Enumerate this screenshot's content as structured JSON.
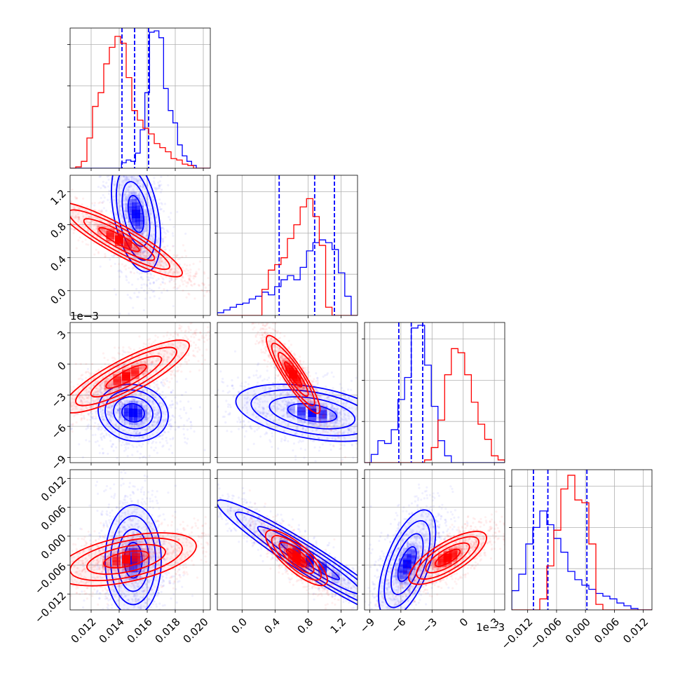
{
  "chart_data": {
    "type": "corner",
    "parameters": [
      {
        "ticks": [
          0.012,
          0.014,
          0.016,
          0.018,
          0.02
        ],
        "tick_labels": [
          "0.012",
          "0.014",
          "0.016",
          "0.018",
          "0.020"
        ],
        "range": [
          0.0105,
          0.0205
        ],
        "offset_text": ""
      },
      {
        "ticks": [
          0.0,
          0.4,
          0.8,
          1.2
        ],
        "tick_labels": [
          "0.0",
          "0.4",
          "0.8",
          "1.2"
        ],
        "range": [
          -0.3,
          1.4
        ],
        "offset_text": ""
      },
      {
        "ticks": [
          -9,
          -6,
          -3,
          0,
          3
        ],
        "tick_labels": [
          "−9",
          "−6",
          "−3",
          "0",
          "3"
        ],
        "range": [
          -9.5,
          4.0
        ],
        "offset_text": "1e−3"
      },
      {
        "ticks": [
          -0.012,
          -0.006,
          0.0,
          0.006,
          0.012
        ],
        "tick_labels": [
          "−0.012",
          "−0.006",
          "0.000",
          "0.006",
          "0.012"
        ],
        "range": [
          -0.0153,
          0.0138
        ],
        "offset_text": ""
      }
    ],
    "series": [
      {
        "color": "#0000ff",
        "quantiles": [
          [
            0.0142,
            0.0151,
            0.0161
          ],
          [
            0.45,
            0.88,
            1.12
          ],
          [
            -6.2,
            -5.0,
            -3.9
          ],
          [
            -0.0108,
            -0.0078,
            0.0003
          ]
        ],
        "hists": [
          [
            0,
            0,
            0,
            0,
            0,
            0,
            0,
            0,
            0,
            0,
            0,
            0.04,
            0.06,
            0.05,
            0.11,
            0.28,
            0.55,
            0.99,
            1.0,
            0.95,
            0.58,
            0.42,
            0.33,
            0.17,
            0.09,
            0.05,
            0.02,
            0,
            0,
            0
          ],
          [
            0.02,
            0.04,
            0.06,
            0.08,
            0.09,
            0.12,
            0.14,
            0.17,
            0.15,
            0.21,
            0.26,
            0.29,
            0.26,
            0.35,
            0.47,
            0.53,
            0.55,
            0.53,
            0.48,
            0.31,
            0.14,
            0.0
          ],
          [
            0.0,
            0.06,
            0.16,
            0.14,
            0.24,
            0.46,
            0.62,
            0.98,
            1.0,
            0.71,
            0.41,
            0.16,
            0.05,
            0.0,
            0.0,
            0.0,
            0.0,
            0.0,
            0.0,
            0.0,
            0.0
          ],
          [
            0.14,
            0.26,
            0.48,
            0.6,
            0.72,
            0.62,
            0.52,
            0.42,
            0.28,
            0.22,
            0.18,
            0.15,
            0.12,
            0.1,
            0.08,
            0.05,
            0.03,
            0.01,
            0.0,
            0.0
          ]
        ],
        "blobs": [
          {
            "i": 1,
            "j": 0,
            "c": [
              0.0152,
              0.93
            ],
            "s": [
              0.0007,
              0.28
            ],
            "r": -0.4
          },
          {
            "i": 2,
            "j": 0,
            "c": [
              0.015,
              -4.7
            ],
            "s": [
              0.001,
              1.1
            ],
            "r": -0.1
          },
          {
            "i": 2,
            "j": 1,
            "c": [
              0.85,
              -4.7
            ],
            "s": [
              0.37,
              1.1
            ],
            "r": -0.4
          },
          {
            "i": 3,
            "j": 0,
            "c": [
              0.015,
              -0.005
            ],
            "s": [
              0.0008,
              0.0046
            ],
            "r": 0.0
          },
          {
            "i": 3,
            "j": 1,
            "c": [
              0.82,
              -0.005
            ],
            "s": [
              0.45,
              0.005
            ],
            "r": -0.96
          },
          {
            "i": 3,
            "j": 2,
            "c": [
              -5.4,
              -0.0058
            ],
            "s": [
              1.1,
              0.0045
            ],
            "r": 0.6
          }
        ]
      },
      {
        "color": "#ff0000",
        "quantiles": [],
        "hists": [
          [
            0,
            0.01,
            0.05,
            0.22,
            0.45,
            0.55,
            0.76,
            0.88,
            0.96,
            0.91,
            0.66,
            0.42,
            0.35,
            0.29,
            0.25,
            0.18,
            0.15,
            0.12,
            0.07,
            0.06,
            0.03,
            0.02,
            0,
            0,
            0
          ],
          [
            0.0,
            0.0,
            0.0,
            0.0,
            0.0,
            0.0,
            0.0,
            0.19,
            0.33,
            0.37,
            0.42,
            0.56,
            0.66,
            0.79,
            0.85,
            0.72,
            0.51,
            0.06,
            0.0,
            0.0,
            0.0,
            0.0
          ],
          [
            0.0,
            0.0,
            0.0,
            0.0,
            0.0,
            0.0,
            0.0,
            0.0,
            0.0,
            0.02,
            0.11,
            0.31,
            0.64,
            0.83,
            0.8,
            0.64,
            0.44,
            0.28,
            0.17,
            0.05,
            0.02
          ],
          [
            0.0,
            0.0,
            0.0,
            0.0,
            0.08,
            0.32,
            0.58,
            0.88,
            0.98,
            0.8,
            0.78,
            0.48,
            0.04,
            0.0,
            0.0,
            0.0,
            0.0,
            0.0,
            0.0,
            0.0
          ]
        ],
        "blobs": [
          {
            "i": 1,
            "j": 0,
            "c": [
              0.014,
              0.62
            ],
            "s": [
              0.0018,
              0.18
            ],
            "r": -0.9
          },
          {
            "i": 2,
            "j": 0,
            "c": [
              0.0145,
              -1.2
            ],
            "s": [
              0.0018,
              1.4
            ],
            "r": 0.85
          },
          {
            "i": 2,
            "j": 1,
            "c": [
              0.62,
              -1.0
            ],
            "s": [
              0.13,
              1.5
            ],
            "r": -0.9
          },
          {
            "i": 3,
            "j": 0,
            "c": [
              0.0145,
              -0.0048
            ],
            "s": [
              0.002,
              0.0022
            ],
            "r": 0.5
          },
          {
            "i": 3,
            "j": 1,
            "c": [
              0.66,
              -0.0045
            ],
            "s": [
              0.15,
              0.0023
            ],
            "r": -0.8
          },
          {
            "i": 3,
            "j": 2,
            "c": [
              -1.5,
              -0.0045
            ],
            "s": [
              1.5,
              0.0022
            ],
            "r": 0.75
          }
        ]
      }
    ],
    "grid": true,
    "legend": "none"
  }
}
